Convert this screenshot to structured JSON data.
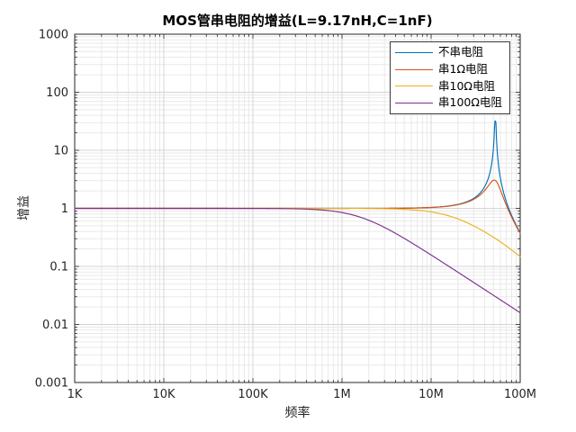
{
  "chart_data": {
    "type": "line",
    "title": "MOS管串电阻的增益(L=9.17nH,C=1nF)",
    "xlabel": "频率",
    "ylabel": "增益",
    "x_scale": "log",
    "y_scale": "log",
    "xlim": [
      1000,
      100000000
    ],
    "ylim": [
      0.001,
      1000
    ],
    "x_ticks": [
      {
        "value": 1000,
        "label": "1K"
      },
      {
        "value": 10000,
        "label": "10K"
      },
      {
        "value": 100000,
        "label": "100K"
      },
      {
        "value": 1000000,
        "label": "1M"
      },
      {
        "value": 10000000,
        "label": "10M"
      },
      {
        "value": 100000000,
        "label": "100M"
      }
    ],
    "y_ticks": [
      {
        "value": 1000,
        "label": "1000"
      },
      {
        "value": 100,
        "label": "100"
      },
      {
        "value": 10,
        "label": "10"
      },
      {
        "value": 1,
        "label": "1"
      },
      {
        "value": 0.1,
        "label": "0.1"
      },
      {
        "value": 0.01,
        "label": "0.01"
      },
      {
        "value": 0.001,
        "label": "0.001"
      }
    ],
    "grid": {
      "major": true,
      "minor": true
    },
    "legend_position": "northeast",
    "model": {
      "description": "Series RLC gain |H(f)| = 1/sqrt((1-(f/f0)^2)^2 + (2*pi*f*R*C)^2)",
      "L_henry": 9.17e-09,
      "C_farad": 1e-09,
      "f0_hz": 52550000,
      "display_peak_cap": 32
    },
    "series": [
      {
        "label": "不串电阻",
        "R_ohm": 0,
        "color": "#0072BD",
        "peak_gain": 32,
        "peak_freq_hz": 52550000,
        "gain_at_100M": 0.38
      },
      {
        "label": "串1Ω电阻",
        "R_ohm": 1,
        "color": "#D95319",
        "peak_gain": 3.03,
        "peak_freq_hz": 51500000,
        "gain_at_100M": 0.37
      },
      {
        "label": "串10Ω电阻",
        "R_ohm": 10,
        "color": "#EDB120",
        "peak_gain": 1.0,
        "gain_at_100M": 0.15
      },
      {
        "label": "串100Ω电阻",
        "R_ohm": 100,
        "color": "#7E2F8E",
        "peak_gain": 1.0,
        "gain_at_100M": 0.016
      }
    ]
  },
  "colors": {
    "axis": "#262626",
    "grid_major": "#d4d4d4",
    "grid_minor": "#e9e9e9",
    "background": "#ffffff",
    "legend_border": "#3a3a3a"
  }
}
